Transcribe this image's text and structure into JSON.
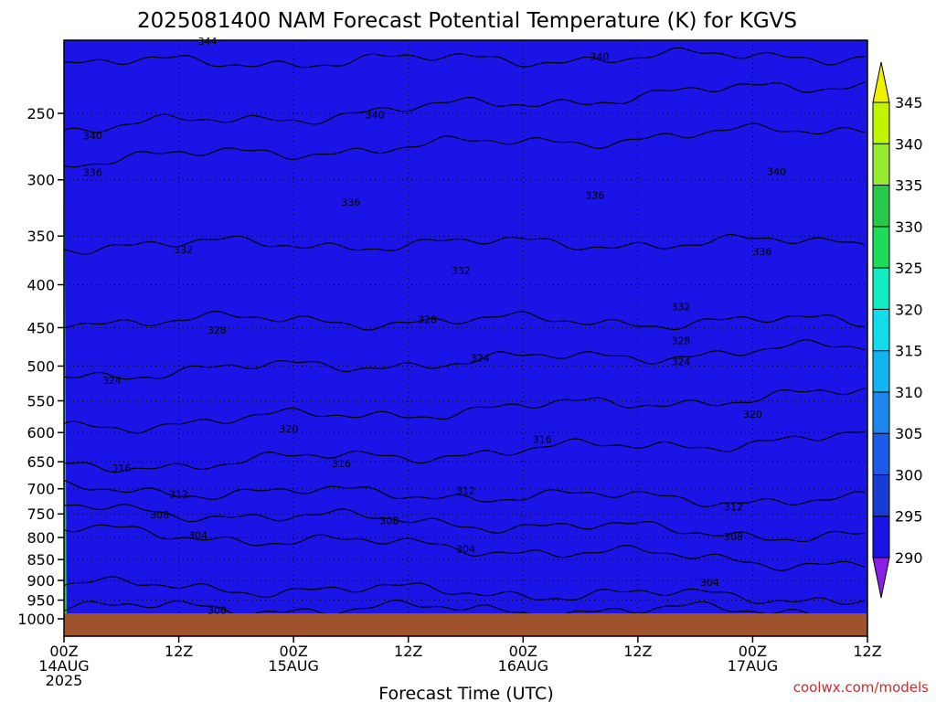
{
  "chart_data": {
    "type": "heatmap",
    "title": "2025081400 NAM Forecast Potential Temperature (K) for KGVS",
    "xlabel": "Forecast Time (UTC)",
    "ylabel": "",
    "y_ticks": [
      250,
      300,
      350,
      400,
      450,
      500,
      550,
      600,
      650,
      700,
      750,
      800,
      850,
      900,
      950,
      1000
    ],
    "y_scale": "log (pressure, hPa)",
    "y_range": [
      200,
      1000
    ],
    "x_ticks": [
      {
        "hour": 0,
        "line1": "00Z",
        "line2": "14AUG",
        "line3": "2025"
      },
      {
        "hour": 12,
        "line1": "12Z",
        "line2": "",
        "line3": ""
      },
      {
        "hour": 24,
        "line1": "00Z",
        "line2": "15AUG",
        "line3": ""
      },
      {
        "hour": 36,
        "line1": "12Z",
        "line2": "",
        "line3": ""
      },
      {
        "hour": 48,
        "line1": "00Z",
        "line2": "16AUG",
        "line3": ""
      },
      {
        "hour": 60,
        "line1": "12Z",
        "line2": "",
        "line3": ""
      },
      {
        "hour": 72,
        "line1": "00Z",
        "line2": "17AUG",
        "line3": ""
      },
      {
        "hour": 84,
        "line1": "12Z",
        "line2": "",
        "line3": ""
      }
    ],
    "x_range": [
      0,
      84
    ],
    "colorbar": {
      "levels": [
        290,
        295,
        300,
        305,
        310,
        315,
        320,
        325,
        330,
        335,
        340,
        345
      ],
      "colors": [
        "#8a1ee6",
        "#1a14e6",
        "#1a3cd6",
        "#1c5ae8",
        "#1e86ec",
        "#0fb4f0",
        "#12dcec",
        "#12ecc0",
        "#1edc5a",
        "#26c94a",
        "#96ea32",
        "#c0f500",
        "#f0f000"
      ]
    },
    "contour_labels": [
      {
        "text": "344",
        "hour": 15.0,
        "p": 205
      },
      {
        "text": "340",
        "hour": 3.0,
        "p": 266
      },
      {
        "text": "340",
        "hour": 32.5,
        "p": 251
      },
      {
        "text": "340",
        "hour": 56.0,
        "p": 214
      },
      {
        "text": "340",
        "hour": 74.5,
        "p": 293
      },
      {
        "text": "336",
        "hour": 3.0,
        "p": 294
      },
      {
        "text": "336",
        "hour": 30.0,
        "p": 319
      },
      {
        "text": "336",
        "hour": 55.5,
        "p": 313
      },
      {
        "text": "336",
        "hour": 73.0,
        "p": 365
      },
      {
        "text": "332",
        "hour": 12.5,
        "p": 363
      },
      {
        "text": "332",
        "hour": 41.5,
        "p": 385
      },
      {
        "text": "332",
        "hour": 64.5,
        "p": 425
      },
      {
        "text": "328",
        "hour": 16.0,
        "p": 453
      },
      {
        "text": "328",
        "hour": 38.0,
        "p": 440
      },
      {
        "text": "328",
        "hour": 64.5,
        "p": 466
      },
      {
        "text": "324",
        "hour": 5.0,
        "p": 520
      },
      {
        "text": "324",
        "hour": 43.5,
        "p": 489
      },
      {
        "text": "324",
        "hour": 64.5,
        "p": 494
      },
      {
        "text": "320",
        "hour": 23.5,
        "p": 594
      },
      {
        "text": "320",
        "hour": 72.0,
        "p": 570
      },
      {
        "text": "316",
        "hour": 6.0,
        "p": 661
      },
      {
        "text": "316",
        "hour": 29.0,
        "p": 653
      },
      {
        "text": "316",
        "hour": 50.0,
        "p": 611
      },
      {
        "text": "312",
        "hour": 12.0,
        "p": 710
      },
      {
        "text": "312",
        "hour": 42.0,
        "p": 703
      },
      {
        "text": "312",
        "hour": 70.0,
        "p": 736
      },
      {
        "text": "308",
        "hour": 10.0,
        "p": 751
      },
      {
        "text": "308",
        "hour": 34.0,
        "p": 764
      },
      {
        "text": "308",
        "hour": 70.0,
        "p": 798
      },
      {
        "text": "304",
        "hour": 14.0,
        "p": 795
      },
      {
        "text": "304",
        "hour": 42.0,
        "p": 825
      },
      {
        "text": "304",
        "hour": 67.5,
        "p": 905
      },
      {
        "text": "300",
        "hour": 16.0,
        "p": 977
      }
    ]
  },
  "credit": "coolwx.com/models"
}
